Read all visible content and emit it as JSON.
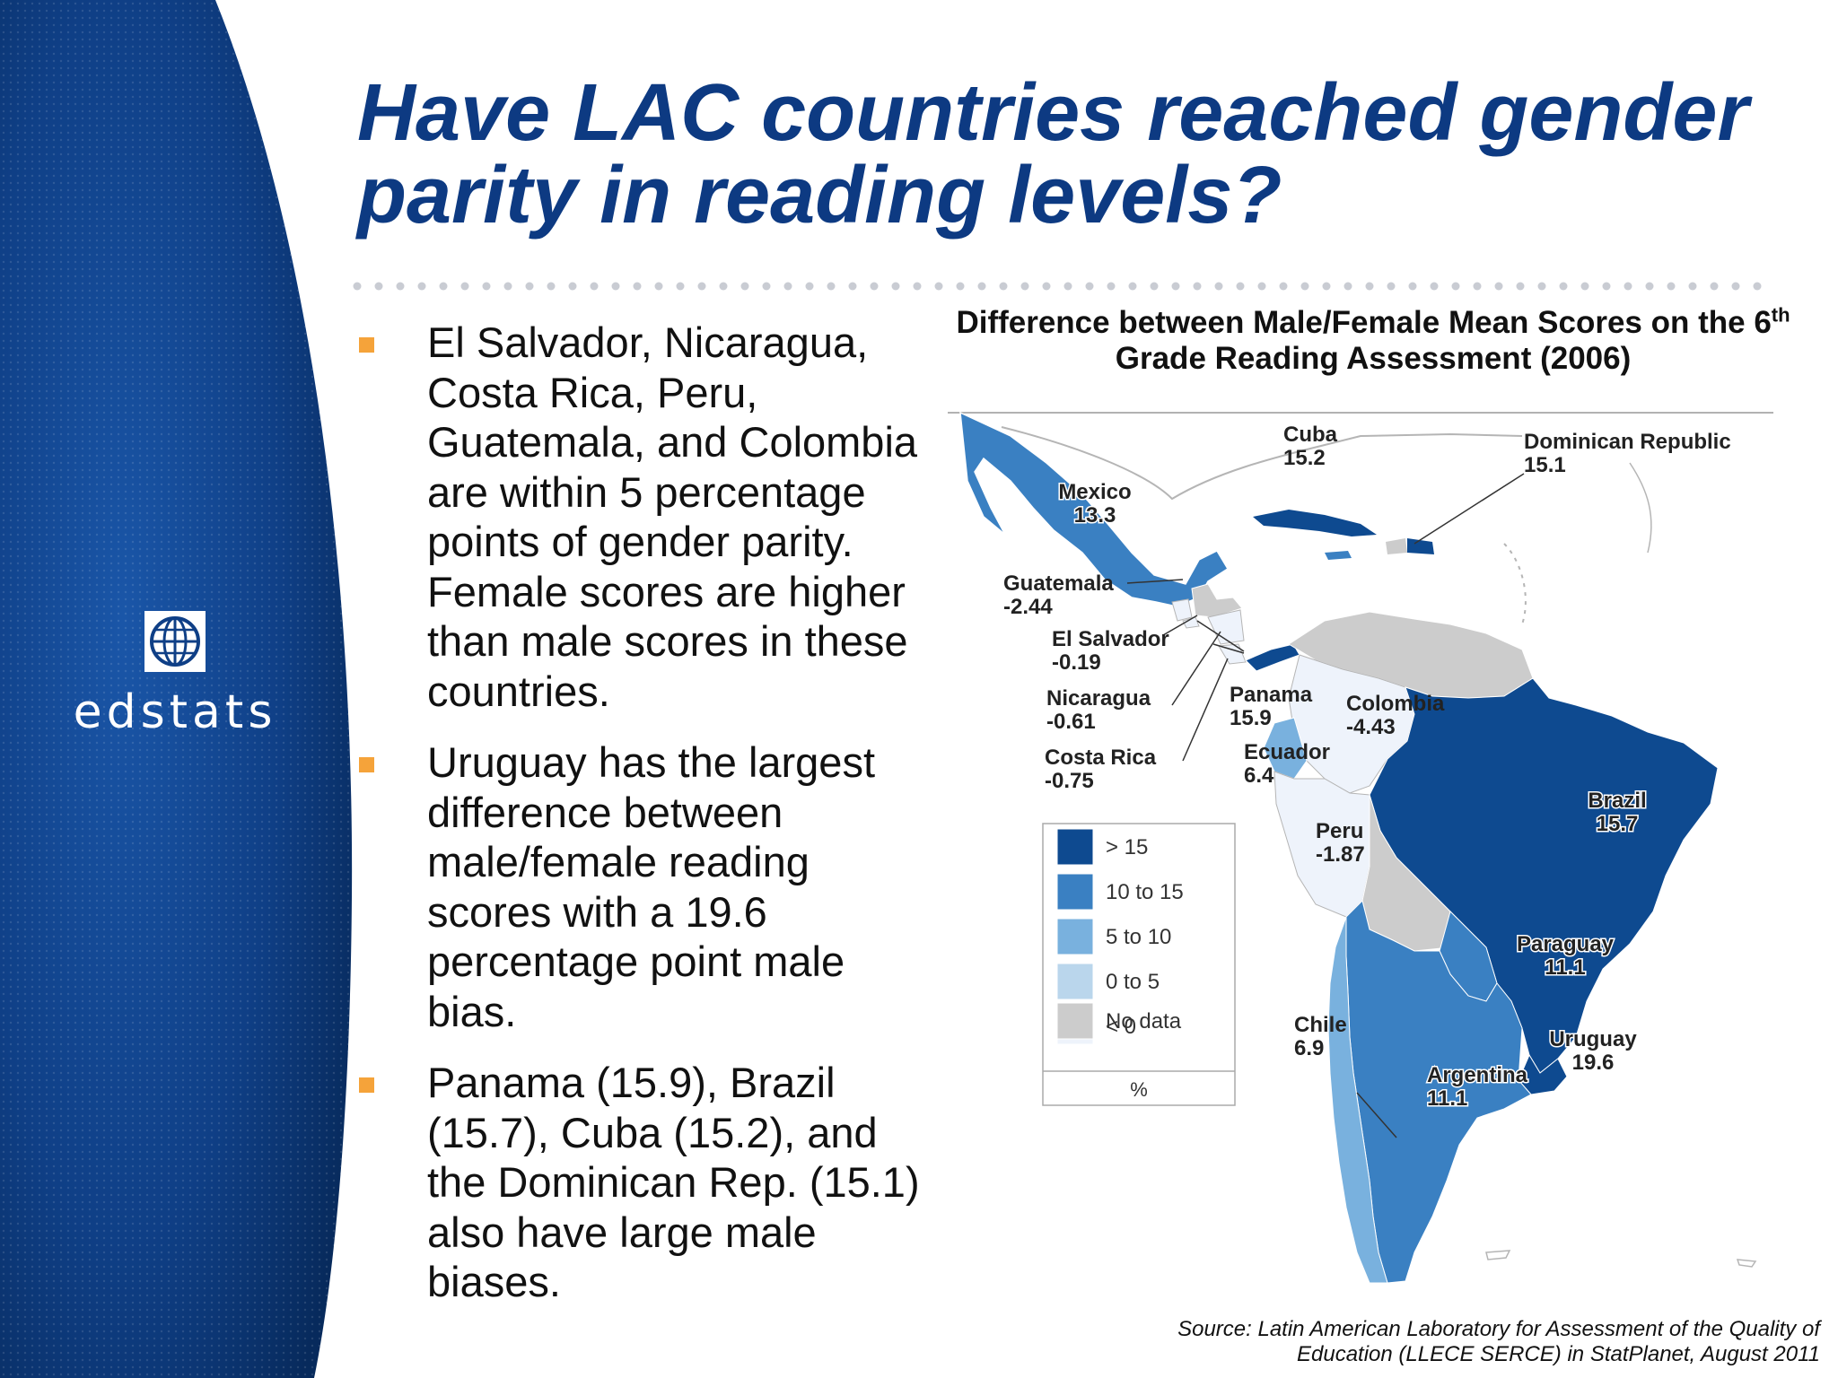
{
  "slide": {
    "title": "Have LAC countries reached gender parity in reading levels?",
    "logo_text": "edstats",
    "accent_color": "#0d3a82",
    "bullet_color": "#f5a33a"
  },
  "bullets": [
    {
      "text": "El Salvador, Nicaragua, Costa Rica, Peru, Guatemala, and Colombia are within 5 percentage points of gender parity. Female scores are higher than male scores in these countries."
    },
    {
      "text": "Uruguay has the largest difference between male/female reading scores with a 19.6 percentage point male bias."
    },
    {
      "text": "Panama (15.9), Brazil (15.7), Cuba (15.2), and the Dominican Rep. (15.1) also have large male biases."
    }
  ],
  "chart_data": {
    "type": "choropleth",
    "title_pre": "Difference between Male/Female Mean Scores on the 6",
    "title_sup": "th",
    "title_post": " Grade Reading Assessment (2006)",
    "legend_unit": "%",
    "legend_placement": "bottom-left",
    "legend": [
      {
        "label": "> 15",
        "color": "#0e4a90"
      },
      {
        "label": "10 to 15",
        "color": "#3a80c2"
      },
      {
        "label": "5 to 10",
        "color": "#79b1de"
      },
      {
        "label": "0 to 5",
        "color": "#bad6ec"
      },
      {
        "label": "< 0",
        "color": "#eef3fb"
      },
      {
        "label": "No data",
        "color": "#cccccc"
      }
    ],
    "regions": [
      {
        "name": "Mexico",
        "value": "13.3"
      },
      {
        "name": "Cuba",
        "value": "15.2"
      },
      {
        "name": "Dominican Republic",
        "value": "15.1"
      },
      {
        "name": "Guatemala",
        "value": "-2.44"
      },
      {
        "name": "El Salvador",
        "value": "-0.19"
      },
      {
        "name": "Nicaragua",
        "value": "-0.61"
      },
      {
        "name": "Costa Rica",
        "value": "-0.75"
      },
      {
        "name": "Panama",
        "value": "15.9"
      },
      {
        "name": "Colombia",
        "value": "-4.43"
      },
      {
        "name": "Ecuador",
        "value": "6.4"
      },
      {
        "name": "Peru",
        "value": "-1.87"
      },
      {
        "name": "Brazil",
        "value": "15.7"
      },
      {
        "name": "Paraguay",
        "value": "11.1"
      },
      {
        "name": "Chile",
        "value": "6.9"
      },
      {
        "name": "Uruguay",
        "value": "19.6"
      },
      {
        "name": "Argentina",
        "value": "11.1"
      }
    ]
  },
  "source": {
    "line1": "Source: Latin American Laboratory for Assessment of the Quality of",
    "line2": "Education (LLECE SERCE) in StatPlanet, August 2011"
  }
}
